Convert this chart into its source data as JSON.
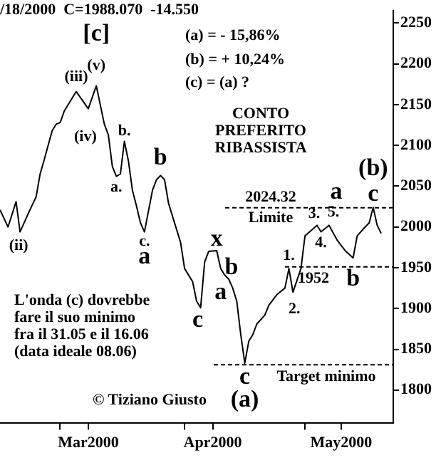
{
  "chart_data": {
    "type": "line",
    "title": "/18/2000  C=1988.070  -14.550",
    "x": [
      "2000-02-15",
      "2000-02-17",
      "2000-02-19",
      "2000-02-20",
      "2000-02-22",
      "2000-02-24",
      "2000-02-25",
      "2000-02-26",
      "2000-02-28",
      "2000-02-29",
      "2000-03-01",
      "2000-03-02",
      "2000-03-05",
      "2000-03-08",
      "2000-03-10",
      "2000-03-12",
      "2000-03-13",
      "2000-03-14",
      "2000-03-15",
      "2000-03-16",
      "2000-03-17",
      "2000-03-18",
      "2000-03-19",
      "2000-03-20",
      "2000-03-21",
      "2000-03-22",
      "2000-03-24",
      "2000-03-25",
      "2000-03-26",
      "2000-03-27",
      "2000-03-28",
      "2000-03-30",
      "2000-03-31",
      "2000-04-01",
      "2000-04-03",
      "2000-04-04",
      "2000-04-05",
      "2000-04-06",
      "2000-04-07",
      "2000-04-09",
      "2000-04-10",
      "2000-04-11",
      "2000-04-12",
      "2000-04-13",
      "2000-04-14",
      "2000-04-15",
      "2000-04-16",
      "2000-04-17",
      "2000-04-18",
      "2000-04-19",
      "2000-04-21",
      "2000-04-22",
      "2000-04-24",
      "2000-04-26",
      "2000-04-27",
      "2000-04-28",
      "2000-04-30",
      "2000-05-01",
      "2000-05-04",
      "2000-05-05",
      "2000-05-07",
      "2000-05-09",
      "2000-05-11",
      "2000-05-13",
      "2000-05-14",
      "2000-05-16",
      "2000-05-17",
      "2000-05-18",
      "2000-05-19",
      "2000-05-20"
    ],
    "series": [
      {
        "color": "#000000",
        "values": [
          2021,
          2000,
          2031,
          1994,
          2016,
          2037,
          2065,
          2082,
          2118,
          2126,
          2128,
          2142,
          2166,
          2145,
          2173,
          2126,
          2113,
          2074,
          2062,
          2065,
          2105,
          2081,
          2045,
          2026,
          2005,
          1994,
          2045,
          2058,
          2063,
          2058,
          2029,
          1997,
          1981,
          1949,
          1933,
          1909,
          1901,
          1957,
          1970,
          1971,
          1949,
          1941,
          1936,
          1925,
          1909,
          1868,
          1833,
          1860,
          1868,
          1881,
          1892,
          1904,
          1917,
          1925,
          1949,
          1920,
          1949,
          1989,
          2002,
          1994,
          2002,
          1984,
          1971,
          1962,
          1989,
          2000,
          2005,
          2024,
          2002,
          1992
        ]
      }
    ],
    "xlim": [
      "2000-02-15",
      "2000-05-23"
    ],
    "xticks": [
      {
        "value": "2000-03-01",
        "label": null
      },
      {
        "value": "2000-03-08",
        "label": "Mar2000"
      },
      {
        "value": "2000-04-01",
        "label": null
      },
      {
        "value": "2000-04-08",
        "label": "Apr2000"
      },
      {
        "value": "2000-05-01",
        "label": null
      },
      {
        "value": "2000-05-10",
        "label": "May2000"
      }
    ],
    "ylim": [
      1760,
      2265
    ],
    "yticks": [
      1800,
      1850,
      1900,
      1950,
      2000,
      2050,
      2100,
      2150,
      2200,
      2250
    ],
    "grid": false,
    "legend": false,
    "marker": "none",
    "line_style": "solid",
    "ref_lines": [
      {
        "axis": "y",
        "value": 2024.32,
        "label": "2024.32",
        "color": "#000000",
        "line_style": "dashed"
      },
      {
        "axis": "y",
        "value": 1952,
        "label": "1952",
        "color": "#000000",
        "line_style": "dashed"
      },
      {
        "axis": "y",
        "value": 1832,
        "label": "Target minimo",
        "color": "#000000",
        "line_style": "dashed"
      }
    ],
    "annotations": [
      "(a) = - 15,86%",
      "(b) = + 10,24%",
      "(c) = (a) ?",
      "CONTO\nPREFERITO\nRIBASSISTA",
      "L'onda (c) dovrebbe\nfare il suo minimo\nfra il 31.05 e il 16.06\n(data ideale 08.06)",
      "© Tiziano Giusto",
      "Limite",
      {
        "text": "[c]",
        "x": "2000-03-10",
        "y": 2173
      },
      {
        "text": "(v)",
        "x": "2000-03-10",
        "y": 2173
      },
      {
        "text": "(iii)",
        "x": "2000-03-05",
        "y": 2166
      },
      {
        "text": "(iv)",
        "x": "2000-03-08",
        "y": 2145
      },
      {
        "text": "(ii)",
        "x": "2000-02-20",
        "y": 1994
      },
      {
        "text": "a.",
        "x": "2000-03-15",
        "y": 2062
      },
      {
        "text": "b.",
        "x": "2000-03-17",
        "y": 2105
      },
      {
        "text": "c.",
        "x": "2000-03-22",
        "y": 1994
      },
      {
        "text": "a",
        "x": "2000-03-22",
        "y": 1994
      },
      {
        "text": "b",
        "x": "2000-03-26",
        "y": 2063
      },
      {
        "text": "c",
        "x": "2000-04-05",
        "y": 1901
      },
      {
        "text": "x",
        "x": "2000-04-09",
        "y": 1971
      },
      {
        "text": "b",
        "x": "2000-04-12",
        "y": 1936
      },
      {
        "text": "a",
        "x": "2000-04-10",
        "y": 1949
      },
      {
        "text": "c",
        "x": "2000-04-16",
        "y": 1833
      },
      {
        "text": "(a)",
        "x": "2000-04-16",
        "y": 1833
      },
      {
        "text": "1.",
        "x": "2000-04-27",
        "y": 1949
      },
      {
        "text": "2.",
        "x": "2000-04-28",
        "y": 1920
      },
      {
        "text": "3.",
        "x": "2000-05-04",
        "y": 2002
      },
      {
        "text": "4.",
        "x": "2000-05-05",
        "y": 1994
      },
      {
        "text": "5.",
        "x": "2000-05-07",
        "y": 2002
      },
      {
        "text": "a",
        "x": "2000-05-07",
        "y": 2002
      },
      {
        "text": "b",
        "x": "2000-05-13",
        "y": 1962
      },
      {
        "text": "c",
        "x": "2000-05-18",
        "y": 2024
      },
      {
        "text": "(b)",
        "x": "2000-05-18",
        "y": 2024
      }
    ]
  }
}
